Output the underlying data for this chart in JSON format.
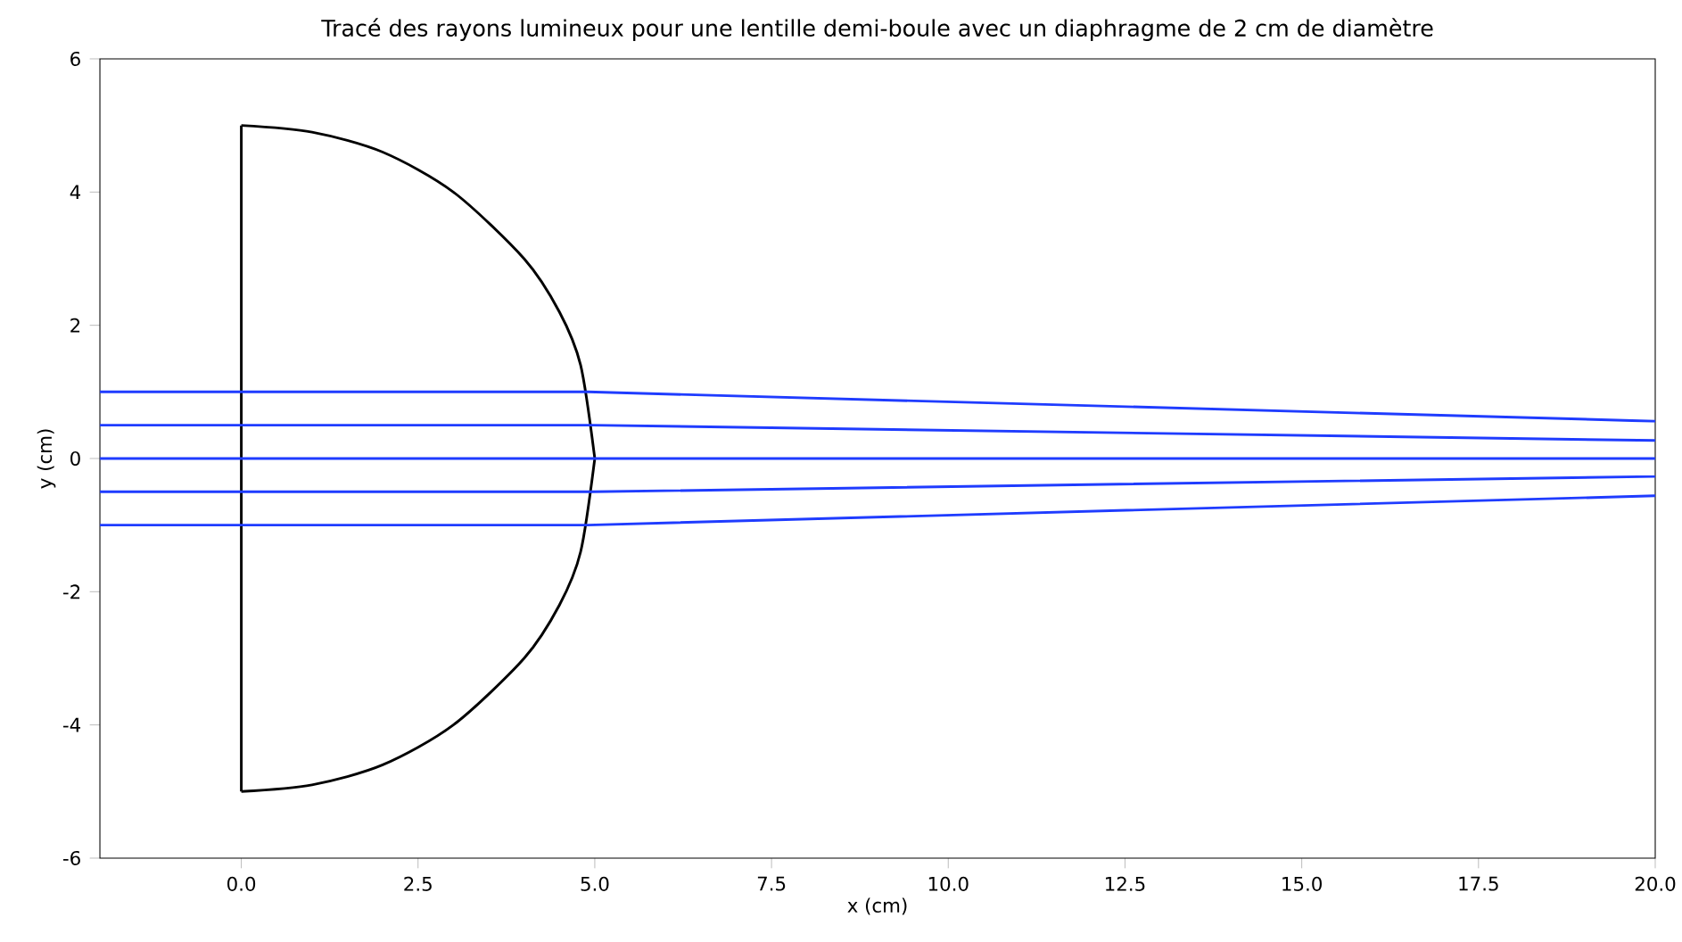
{
  "chart_data": {
    "type": "line",
    "title": "Tracé des rayons lumineux pour une lentille demi-boule avec un diaphragme de 2 cm de diamètre",
    "xlabel": "x (cm)",
    "ylabel": "y (cm)",
    "xlim": [
      -2,
      20
    ],
    "ylim": [
      -6,
      6
    ],
    "xticks": [
      {
        "value": 0,
        "label": "0.0"
      },
      {
        "value": 2.5,
        "label": "2.5"
      },
      {
        "value": 5,
        "label": "5.0"
      },
      {
        "value": 7.5,
        "label": "7.5"
      },
      {
        "value": 10,
        "label": "10.0"
      },
      {
        "value": 12.5,
        "label": "12.5"
      },
      {
        "value": 15,
        "label": "15.0"
      },
      {
        "value": 17.5,
        "label": "17.5"
      },
      {
        "value": 20,
        "label": "20.0"
      }
    ],
    "yticks": [
      -6,
      -4,
      -2,
      0,
      2,
      4,
      6
    ],
    "grid": false,
    "marker": "none",
    "line_style": "solid",
    "series": [
      {
        "color": "#000000",
        "x": [
          0,
          0
        ],
        "values": [
          -5,
          5
        ]
      },
      {
        "color": "#000000",
        "x": [
          0,
          1,
          2,
          3,
          4,
          4.5,
          4.8,
          5
        ],
        "values": [
          5,
          4.9,
          4.6,
          4,
          3,
          2.2,
          1.4,
          0
        ]
      },
      {
        "color": "#000000",
        "x": [
          0,
          1,
          2,
          3,
          4,
          4.5,
          4.8,
          5
        ],
        "values": [
          -5,
          -4.9,
          -4.6,
          -4,
          -3,
          -2.2,
          -1.4,
          0
        ]
      },
      {
        "color": "#1f3cff",
        "x": [
          -2,
          4.9,
          20
        ],
        "values": [
          1,
          1,
          0.56
        ]
      },
      {
        "color": "#1f3cff",
        "x": [
          -2,
          4.97,
          20
        ],
        "values": [
          0.5,
          0.5,
          0.27
        ]
      },
      {
        "color": "#1f3cff",
        "x": [
          -2,
          20
        ],
        "values": [
          0,
          0
        ]
      },
      {
        "color": "#1f3cff",
        "x": [
          -2,
          4.97,
          20
        ],
        "values": [
          -0.5,
          -0.5,
          -0.27
        ]
      },
      {
        "color": "#1f3cff",
        "x": [
          -2,
          4.9,
          20
        ],
        "values": [
          -1,
          -1,
          -0.56
        ]
      }
    ]
  }
}
